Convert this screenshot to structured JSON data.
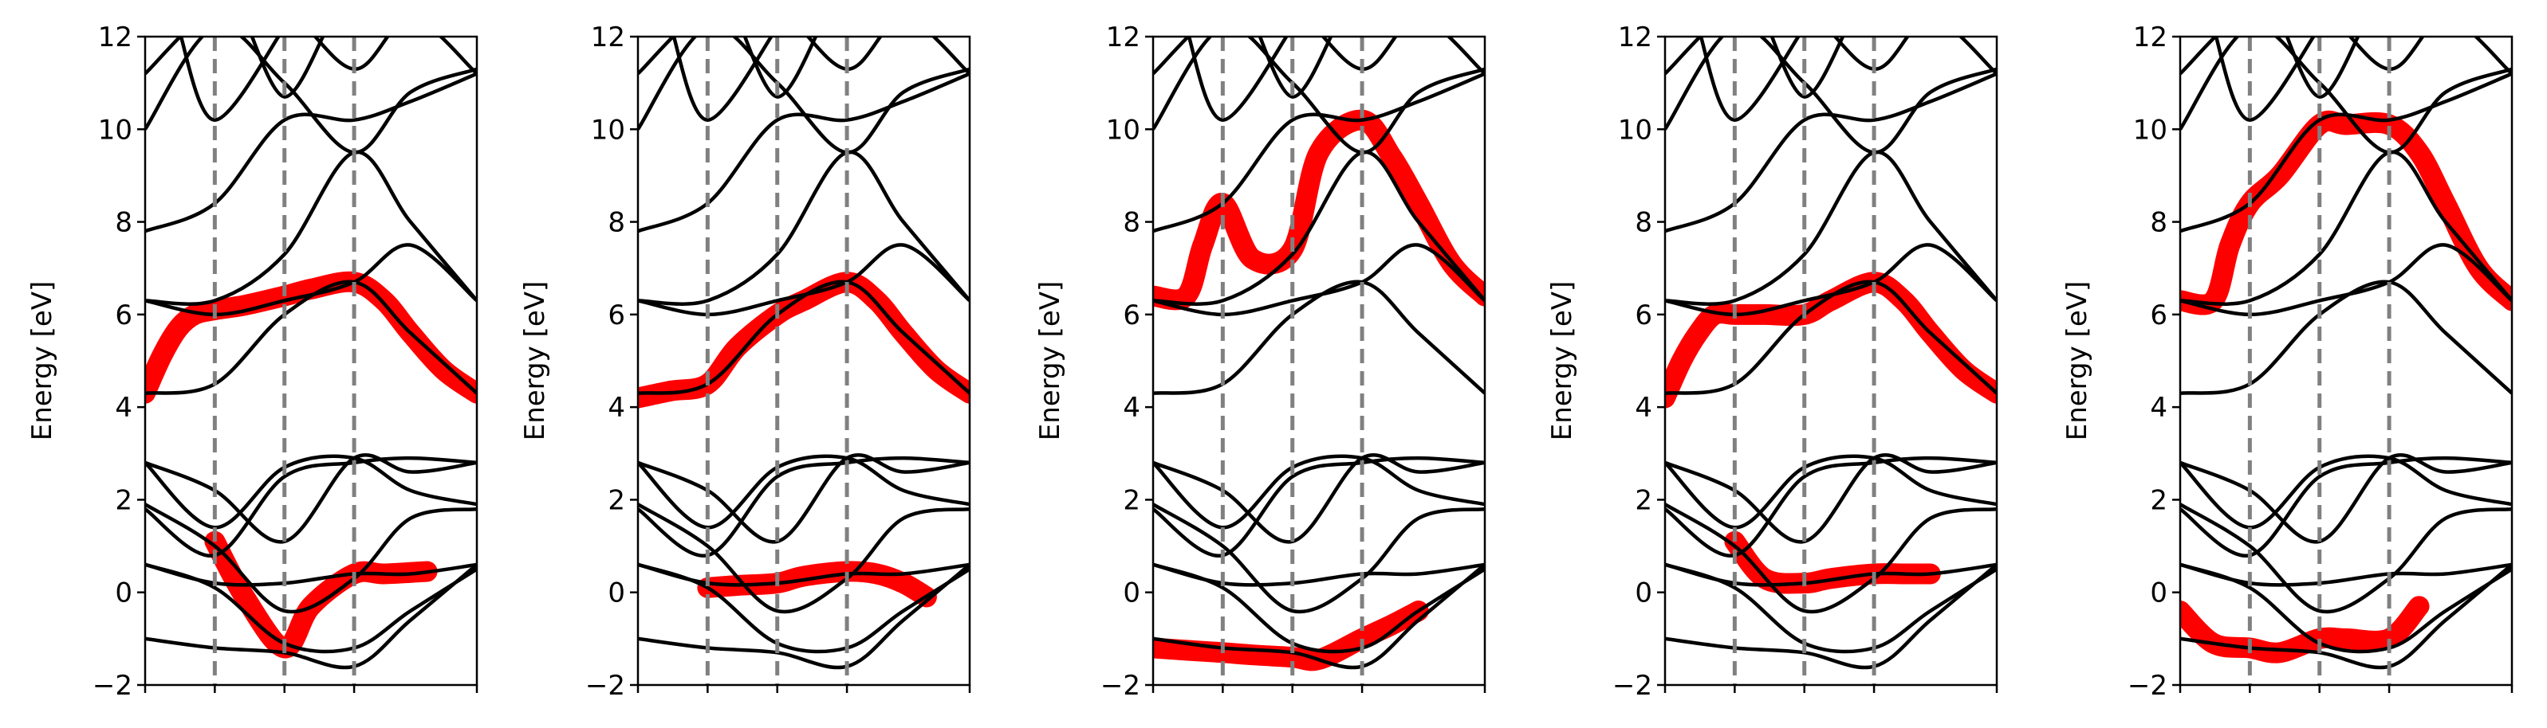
{
  "chart_data": [
    {
      "type": "line",
      "ylabel": "Energy [eV]",
      "ylim": [
        -2,
        12
      ],
      "yticks": [
        -2,
        0,
        2,
        4,
        6,
        8,
        10,
        12
      ],
      "xlim": [
        0,
        1
      ],
      "kpoint_lines": [
        0,
        0.21,
        0.42,
        0.63,
        1.0
      ],
      "weighted_bands": [
        {
          "x": [
            0,
            0.05,
            0.1,
            0.15,
            0.21,
            0.3,
            0.42,
            0.5,
            0.63,
            0.72,
            0.8,
            0.9,
            1.0
          ],
          "y": [
            4.3,
            5.1,
            5.7,
            6.0,
            6.1,
            6.2,
            6.4,
            6.55,
            6.7,
            6.3,
            5.6,
            4.8,
            4.3
          ]
        },
        {
          "x": [
            0.21,
            0.3,
            0.42,
            0.5,
            0.63,
            0.72,
            0.85
          ],
          "y": [
            1.1,
            -0.1,
            -1.2,
            -0.3,
            0.4,
            0.4,
            0.45
          ]
        }
      ]
    },
    {
      "type": "line",
      "ylabel": "Energy [eV]",
      "ylim": [
        -2,
        12
      ],
      "yticks": [
        -2,
        0,
        2,
        4,
        6,
        8,
        10,
        12
      ],
      "xlim": [
        0,
        1
      ],
      "kpoint_lines": [
        0,
        0.21,
        0.42,
        0.63,
        1.0
      ],
      "weighted_bands": [
        {
          "x": [
            0,
            0.1,
            0.21,
            0.3,
            0.42,
            0.5,
            0.63,
            0.72,
            0.8,
            0.9,
            1.0
          ],
          "y": [
            4.2,
            4.35,
            4.5,
            5.3,
            6.0,
            6.3,
            6.7,
            6.3,
            5.6,
            4.8,
            4.3
          ]
        },
        {
          "x": [
            0.21,
            0.3,
            0.42,
            0.5,
            0.63,
            0.72,
            0.8,
            0.87
          ],
          "y": [
            0.1,
            0.15,
            0.2,
            0.35,
            0.45,
            0.4,
            0.2,
            -0.1
          ]
        }
      ]
    },
    {
      "type": "line",
      "ylabel": "Energy [eV]",
      "ylim": [
        -2,
        12
      ],
      "yticks": [
        -2,
        0,
        2,
        4,
        6,
        8,
        10,
        12
      ],
      "xlim": [
        0,
        1
      ],
      "kpoint_lines": [
        0,
        0.21,
        0.42,
        0.63,
        1.0
      ],
      "weighted_bands": [
        {
          "x": [
            0,
            0.1,
            0.15,
            0.21,
            0.3,
            0.42,
            0.5,
            0.63,
            0.72,
            0.8,
            0.9,
            1.0
          ],
          "y": [
            6.4,
            6.4,
            7.5,
            8.4,
            7.2,
            7.4,
            9.5,
            10.2,
            9.4,
            8.4,
            7.1,
            6.4
          ]
        },
        {
          "x": [
            0,
            0.1,
            0.21,
            0.3,
            0.42,
            0.5,
            0.63,
            0.72,
            0.8
          ],
          "y": [
            -1.2,
            -1.25,
            -1.3,
            -1.35,
            -1.4,
            -1.45,
            -1.0,
            -0.7,
            -0.4
          ]
        }
      ]
    },
    {
      "type": "line",
      "ylabel": "Energy [eV]",
      "ylim": [
        -2,
        12
      ],
      "yticks": [
        -2,
        0,
        2,
        4,
        6,
        8,
        10,
        12
      ],
      "xlim": [
        0,
        1
      ],
      "kpoint_lines": [
        0,
        0.21,
        0.42,
        0.63,
        1.0
      ],
      "weighted_bands": [
        {
          "x": [
            0,
            0.05,
            0.1,
            0.15,
            0.21,
            0.3,
            0.42,
            0.5,
            0.63,
            0.72,
            0.8,
            0.9,
            1.0
          ],
          "y": [
            4.2,
            5.0,
            5.6,
            6.0,
            6.0,
            6.0,
            6.0,
            6.3,
            6.7,
            6.3,
            5.6,
            4.8,
            4.3
          ]
        },
        {
          "x": [
            0.21,
            0.3,
            0.42,
            0.5,
            0.63,
            0.72,
            0.8
          ],
          "y": [
            1.1,
            0.3,
            0.2,
            0.3,
            0.4,
            0.4,
            0.4
          ]
        }
      ]
    },
    {
      "type": "line",
      "ylabel": "Energy [eV]",
      "ylim": [
        -2,
        12
      ],
      "yticks": [
        -2,
        0,
        2,
        4,
        6,
        8,
        10,
        12
      ],
      "xlim": [
        0,
        1
      ],
      "kpoint_lines": [
        0,
        0.21,
        0.42,
        0.63,
        1.0
      ],
      "weighted_bands": [
        {
          "x": [
            0,
            0.1,
            0.15,
            0.21,
            0.3,
            0.42,
            0.5,
            0.63,
            0.72,
            0.8,
            0.9,
            1.0
          ],
          "y": [
            6.3,
            6.3,
            7.5,
            8.4,
            9.0,
            10.1,
            10.1,
            10.1,
            9.5,
            8.4,
            7.0,
            6.3
          ]
        },
        {
          "x": [
            0,
            0.1,
            0.21,
            0.3,
            0.42,
            0.5,
            0.63,
            0.72
          ],
          "y": [
            -0.4,
            -1.1,
            -1.2,
            -1.3,
            -1.0,
            -1.0,
            -1.0,
            -0.3
          ]
        }
      ]
    }
  ],
  "colors": {
    "band": "#000000",
    "weight": "#ff0000",
    "kpoint_line": "#808080",
    "axis": "#000000"
  }
}
